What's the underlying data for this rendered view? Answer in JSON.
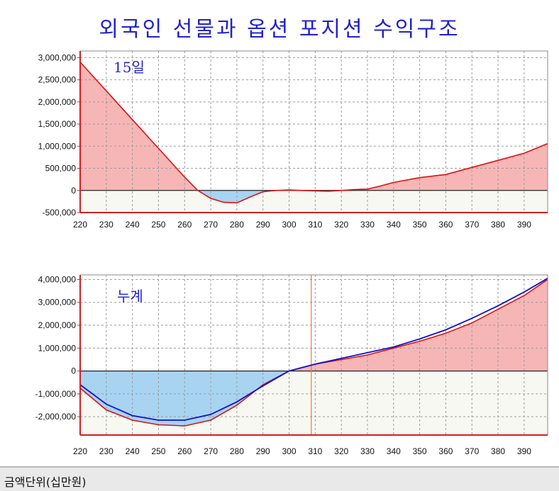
{
  "page": {
    "title": "외국인 선물과 옵션 포지션 수익구조",
    "footer_unit": "금액단위(십만원)"
  },
  "colors": {
    "title": "#2222cc",
    "line_red": "#dd1111",
    "line_blue": "#1111cc",
    "fill_positive": "#f7b6b6",
    "fill_negative": "#a8d4f2",
    "plot_above_zero": "#ffffff",
    "plot_below_zero": "#f8f8f2",
    "grid": "#9a9a9a",
    "marker_line": "#e87833"
  },
  "chart_data": [
    {
      "type": "area",
      "label": "15일",
      "xlim": [
        220,
        399
      ],
      "ylim": [
        -500000,
        3150000
      ],
      "x_ticks": [
        220,
        230,
        240,
        250,
        260,
        270,
        280,
        290,
        300,
        310,
        320,
        330,
        340,
        350,
        360,
        370,
        380,
        390
      ],
      "y_ticks": [
        -500000,
        0,
        500000,
        1000000,
        1500000,
        2000000,
        2500000,
        3000000
      ],
      "y_tick_labels": [
        "-500,000",
        "0",
        "500,000",
        "1,000,000",
        "1,500,000",
        "2,000,000",
        "2,500,000",
        "3,000,000"
      ],
      "series": [
        {
          "x": [
            220,
            230,
            240,
            250,
            260,
            265,
            270,
            275,
            280,
            285,
            290,
            295,
            300,
            305,
            310,
            315,
            320,
            325,
            330,
            335,
            340,
            350,
            360,
            370,
            380,
            390,
            399
          ],
          "y": [
            2900000,
            2250000,
            1600000,
            950000,
            300000,
            0,
            -180000,
            -270000,
            -280000,
            -150000,
            -30000,
            0,
            10000,
            0,
            -10000,
            -20000,
            0,
            20000,
            30000,
            100000,
            180000,
            290000,
            360000,
            520000,
            680000,
            840000,
            1060000
          ]
        }
      ]
    },
    {
      "type": "area",
      "label": "누계",
      "xlim": [
        220,
        399
      ],
      "ylim": [
        -2800000,
        4200000
      ],
      "x_ticks": [
        220,
        230,
        240,
        250,
        260,
        270,
        280,
        290,
        300,
        310,
        320,
        330,
        340,
        350,
        360,
        370,
        380,
        390
      ],
      "y_ticks": [
        -2000000,
        -1000000,
        0,
        1000000,
        2000000,
        3000000,
        4000000
      ],
      "y_tick_labels": [
        "-2,000,000",
        "-1,000,000",
        "0",
        "1,000,000",
        "2,000,000",
        "3,000,000",
        "4,000,000"
      ],
      "marker_x": 308.5,
      "series": [
        {
          "x": [
            220,
            230,
            240,
            250,
            260,
            270,
            280,
            290,
            300,
            310,
            320,
            330,
            340,
            350,
            360,
            370,
            380,
            390,
            399
          ],
          "y": [
            -750000,
            -1700000,
            -2150000,
            -2350000,
            -2400000,
            -2150000,
            -1500000,
            -600000,
            0,
            300000,
            500000,
            700000,
            1000000,
            1300000,
            1650000,
            2100000,
            2700000,
            3300000,
            4000000
          ]
        },
        {
          "x": [
            220,
            230,
            240,
            250,
            260,
            270,
            280,
            290,
            300,
            310,
            320,
            330,
            340,
            350,
            360,
            370,
            380,
            390,
            399
          ],
          "y": [
            -600000,
            -1450000,
            -1950000,
            -2150000,
            -2150000,
            -1900000,
            -1350000,
            -650000,
            0,
            300000,
            550000,
            800000,
            1050000,
            1400000,
            1800000,
            2300000,
            2850000,
            3450000,
            4050000
          ]
        }
      ]
    }
  ]
}
